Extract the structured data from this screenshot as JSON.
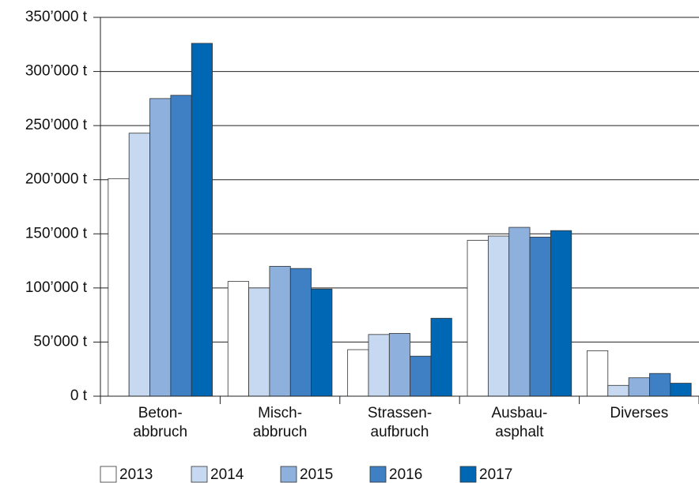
{
  "chart_data": {
    "type": "bar",
    "categories": [
      "Beton-\nabbruch",
      "Misch-\nabbruch",
      "Strassen-\naufbruch",
      "Ausbau-\nasphalt",
      "Diverses"
    ],
    "series": [
      {
        "name": "2013",
        "color": "#ffffff",
        "values": [
          201000,
          106000,
          43000,
          144000,
          42000
        ]
      },
      {
        "name": "2014",
        "color": "#c6d9f0",
        "values": [
          243000,
          100000,
          57000,
          148000,
          10000
        ]
      },
      {
        "name": "2015",
        "color": "#8db0dc",
        "values": [
          275000,
          120000,
          58000,
          156000,
          17000
        ]
      },
      {
        "name": "2016",
        "color": "#3f80c4",
        "values": [
          278000,
          118000,
          37000,
          147000,
          21000
        ]
      },
      {
        "name": "2017",
        "color": "#0067b4",
        "values": [
          326000,
          99000,
          72000,
          153000,
          12000
        ]
      }
    ],
    "ylim": [
      0,
      350000
    ],
    "yticks": [
      {
        "value": 0,
        "label": "0 t"
      },
      {
        "value": 50000,
        "label": "50’000 t"
      },
      {
        "value": 100000,
        "label": "100’000 t"
      },
      {
        "value": 150000,
        "label": "150’000 t"
      },
      {
        "value": 200000,
        "label": "200’000 t"
      },
      {
        "value": 250000,
        "label": "250’000 t"
      },
      {
        "value": 300000,
        "label": "300’000 t"
      },
      {
        "value": 350000,
        "label": "350’000 t"
      }
    ],
    "grid": true,
    "legend": "bottom"
  }
}
